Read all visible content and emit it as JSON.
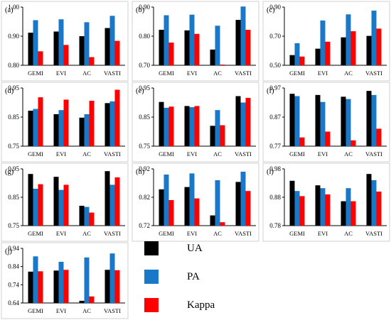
{
  "chart_data": [
    {
      "type": "bar",
      "panel_label": "(a)",
      "categories": [
        "GEMI",
        "EVI",
        "AC",
        "VASTI"
      ],
      "ylim": [
        0.8,
        1.0
      ],
      "yticks": [
        "0.80",
        "0.90",
        "1.00"
      ],
      "series": [
        {
          "name": "UA",
          "values": [
            0.912,
            0.916,
            0.9,
            0.928
          ]
        },
        {
          "name": "PA",
          "values": [
            0.955,
            0.958,
            0.948,
            0.97
          ]
        },
        {
          "name": "Kappa",
          "values": [
            0.848,
            0.87,
            0.828,
            0.884
          ]
        }
      ]
    },
    {
      "type": "bar",
      "panel_label": "(b)",
      "categories": [
        "GEMI",
        "EVI",
        "AC",
        "VASTI"
      ],
      "ylim": [
        0.7,
        0.9
      ],
      "yticks": [
        "0.70",
        "0.80",
        "0.90"
      ],
      "series": [
        {
          "name": "UA",
          "values": [
            0.822,
            0.82,
            0.754,
            0.856
          ]
        },
        {
          "name": "PA",
          "values": [
            0.872,
            0.874,
            0.836,
            0.902
          ]
        },
        {
          "name": "Kappa",
          "values": [
            0.778,
            0.808,
            0.702,
            0.822
          ]
        }
      ]
    },
    {
      "type": "bar",
      "panel_label": "(c)",
      "categories": [
        "GEMI",
        "EVI",
        "AC",
        "VASTI"
      ],
      "ylim": [
        0.5,
        0.9
      ],
      "yticks": [
        "0.50",
        "0.70",
        "0.90"
      ],
      "series": [
        {
          "name": "UA",
          "values": [
            0.57,
            0.614,
            0.692,
            0.702
          ]
        },
        {
          "name": "PA",
          "values": [
            0.652,
            0.808,
            0.85,
            0.876
          ]
        },
        {
          "name": "Kappa",
          "values": [
            0.56,
            0.662,
            0.734,
            0.752
          ]
        }
      ]
    },
    {
      "type": "bar",
      "panel_label": "(d)",
      "categories": [
        "GEMI",
        "EVI",
        "AC",
        "VASTI"
      ],
      "ylim": [
        0.75,
        0.95
      ],
      "yticks": [
        "0.75",
        "0.85",
        "0.95"
      ],
      "series": [
        {
          "name": "UA",
          "values": [
            0.872,
            0.86,
            0.848,
            0.898
          ]
        },
        {
          "name": "PA",
          "values": [
            0.878,
            0.874,
            0.86,
            0.904
          ]
        },
        {
          "name": "Kappa",
          "values": [
            0.918,
            0.91,
            0.906,
            0.944
          ]
        }
      ]
    },
    {
      "type": "bar",
      "panel_label": "(e)",
      "categories": [
        "GEMI",
        "EVI",
        "AC",
        "VASTI"
      ],
      "ylim": [
        0.75,
        0.95
      ],
      "yticks": [
        "0.75",
        "0.85",
        "0.95"
      ],
      "series": [
        {
          "name": "UA",
          "values": [
            0.902,
            0.888,
            0.82,
            0.922
          ]
        },
        {
          "name": "PA",
          "values": [
            0.882,
            0.884,
            0.874,
            0.9
          ]
        },
        {
          "name": "Kappa",
          "values": [
            0.886,
            0.888,
            0.822,
            0.916
          ]
        }
      ]
    },
    {
      "type": "bar",
      "panel_label": "(f)",
      "categories": [
        "GEMI",
        "EVI",
        "AC",
        "VASTI"
      ],
      "ylim": [
        0.77,
        0.97
      ],
      "yticks": [
        "0.77",
        "0.87",
        "0.97"
      ],
      "series": [
        {
          "name": "UA",
          "values": [
            0.95,
            0.946,
            0.94,
            0.96
          ]
        },
        {
          "name": "PA",
          "values": [
            0.942,
            0.922,
            0.932,
            0.946
          ]
        },
        {
          "name": "Kappa",
          "values": [
            0.8,
            0.82,
            0.79,
            0.83
          ]
        }
      ]
    },
    {
      "type": "bar",
      "panel_label": "(g)",
      "categories": [
        "GEMI",
        "EVI",
        "AC",
        "VASTI"
      ],
      "ylim": [
        0.75,
        0.95
      ],
      "yticks": [
        "0.75",
        "0.85",
        "0.95"
      ],
      "series": [
        {
          "name": "UA",
          "values": [
            0.932,
            0.922,
            0.82,
            0.942
          ]
        },
        {
          "name": "PA",
          "values": [
            0.88,
            0.876,
            0.816,
            0.894
          ]
        },
        {
          "name": "Kappa",
          "values": [
            0.896,
            0.894,
            0.796,
            0.92
          ]
        }
      ]
    },
    {
      "type": "bar",
      "panel_label": "(h)",
      "categories": [
        "GEMI",
        "EVI",
        "AC",
        "VASTI"
      ],
      "ylim": [
        0.72,
        0.92
      ],
      "yticks": [
        "0.72",
        "0.82",
        "0.92"
      ],
      "series": [
        {
          "name": "UA",
          "values": [
            0.848,
            0.856,
            0.756,
            0.874
          ]
        },
        {
          "name": "PA",
          "values": [
            0.9,
            0.904,
            0.88,
            0.91
          ]
        },
        {
          "name": "Kappa",
          "values": [
            0.81,
            0.816,
            0.732,
            0.842
          ]
        }
      ]
    },
    {
      "type": "bar",
      "panel_label": "(i)",
      "categories": [
        "GEMI",
        "EVI",
        "AC",
        "VASTI"
      ],
      "ylim": [
        0.78,
        0.98
      ],
      "yticks": [
        "0.78",
        "0.88",
        "0.98"
      ],
      "series": [
        {
          "name": "UA",
          "values": [
            0.938,
            0.922,
            0.866,
            0.962
          ]
        },
        {
          "name": "PA",
          "values": [
            0.902,
            0.912,
            0.912,
            0.94
          ]
        },
        {
          "name": "Kappa",
          "values": [
            0.884,
            0.89,
            0.866,
            0.9
          ]
        }
      ]
    },
    {
      "type": "bar",
      "panel_label": "(j)",
      "categories": [
        "GEMI",
        "EVI",
        "AC",
        "VASTI"
      ],
      "ylim": [
        0.64,
        0.94
      ],
      "yticks": [
        "0.64",
        "0.74",
        "0.84",
        "0.94"
      ],
      "series": [
        {
          "name": "UA",
          "values": [
            0.812,
            0.818,
            0.652,
            0.822
          ]
        },
        {
          "name": "PA",
          "values": [
            0.896,
            0.866,
            0.89,
            0.912
          ]
        },
        {
          "name": "Kappa",
          "values": [
            0.814,
            0.822,
            0.676,
            0.82
          ]
        }
      ]
    }
  ],
  "legend": [
    {
      "name": "UA",
      "color": "#000000"
    },
    {
      "name": "PA",
      "color": "#1a78c8"
    },
    {
      "name": "Kappa",
      "color": "#ff0000"
    }
  ]
}
